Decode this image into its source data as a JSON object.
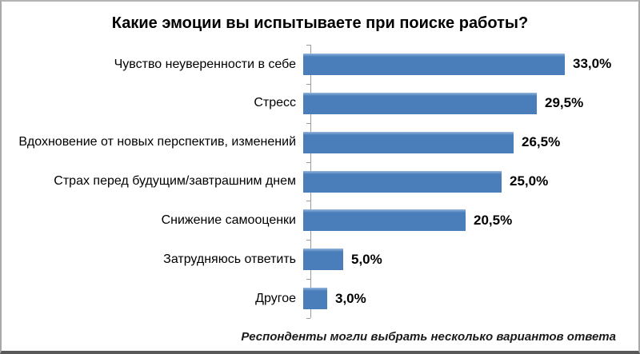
{
  "chart_data": {
    "type": "bar",
    "orientation": "horizontal",
    "title": "Какие эмоции вы испытываете при поиске работы?",
    "categories": [
      "Чувство неуверенности в себе",
      "Стресс",
      "Вдохновение от новых перспектив, изменений",
      "Страх перед будущим/завтрашним днем",
      "Снижение самооценки",
      "Затрудняюсь ответить",
      "Другое"
    ],
    "values": [
      33.0,
      29.5,
      26.5,
      25.0,
      20.5,
      5.0,
      3.0
    ],
    "value_labels": [
      "33,0%",
      "29,5%",
      "26,5%",
      "25,0%",
      "20,5%",
      "5,0%",
      "3,0%"
    ],
    "footnote": "Респонденты могли выбрать несколько вариантов ответа",
    "bar_color": "#4a7ebb",
    "axis_color": "#9b9b9b",
    "xlim": [
      0,
      34.5
    ],
    "grid": false,
    "legend": false
  }
}
